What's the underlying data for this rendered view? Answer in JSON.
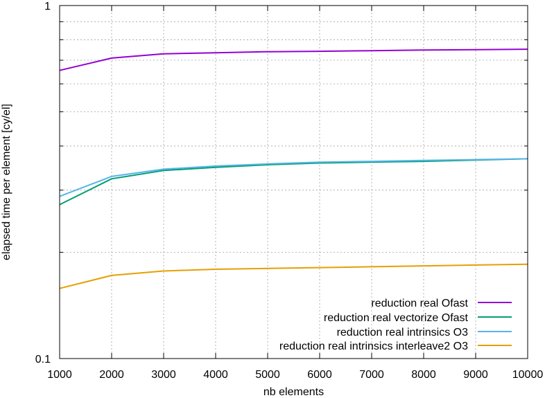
{
  "chart_data": {
    "type": "line",
    "xlabel": "nb elements",
    "ylabel": "elapsed time per element [cy/el]",
    "xlim": [
      1000,
      10000
    ],
    "ylim": [
      0.1,
      1
    ],
    "yscale": "log",
    "grid": true,
    "legend_position": "bottom-right",
    "x_ticks": [
      "1000",
      "2000",
      "3000",
      "4000",
      "5000",
      "6000",
      "7000",
      "8000",
      "9000",
      "10000"
    ],
    "y_ticks": [
      "0.1",
      "1"
    ],
    "series": [
      {
        "name": "reduction real Ofast",
        "color": "#9400d3",
        "x": [
          1000,
          2000,
          3000,
          4000,
          5000,
          6000,
          7000,
          8000,
          9000,
          10000
        ],
        "y": [
          0.655,
          0.71,
          0.73,
          0.735,
          0.74,
          0.742,
          0.745,
          0.748,
          0.75,
          0.752
        ]
      },
      {
        "name": "reduction real vectorize Ofast",
        "color": "#009e73",
        "x": [
          1000,
          2000,
          3000,
          4000,
          5000,
          6000,
          7000,
          8000,
          9000,
          10000
        ],
        "y": [
          0.273,
          0.323,
          0.341,
          0.348,
          0.354,
          0.358,
          0.36,
          0.362,
          0.365,
          0.368
        ]
      },
      {
        "name": "reduction real intrinsics O3",
        "color": "#56b4e9",
        "x": [
          1000,
          2000,
          3000,
          4000,
          5000,
          6000,
          7000,
          8000,
          9000,
          10000
        ],
        "y": [
          0.288,
          0.328,
          0.344,
          0.351,
          0.356,
          0.36,
          0.362,
          0.364,
          0.366,
          0.368
        ]
      },
      {
        "name": "reduction real intrinsics interleave2 O3",
        "color": "#e69f00",
        "x": [
          1000,
          2000,
          3000,
          4000,
          5000,
          6000,
          7000,
          8000,
          9000,
          10000
        ],
        "y": [
          0.158,
          0.172,
          0.177,
          0.179,
          0.18,
          0.181,
          0.182,
          0.183,
          0.184,
          0.185
        ]
      }
    ]
  }
}
